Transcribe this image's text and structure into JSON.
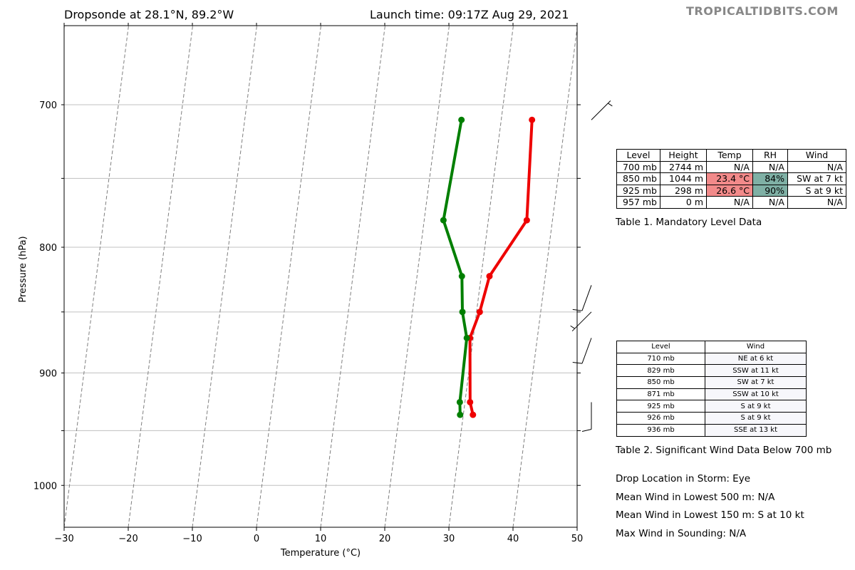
{
  "header": {
    "title_left": "Dropsonde at 28.1°N, 89.2°W",
    "title_right": "Launch time: 09:17Z Aug 29, 2021",
    "brand": "TROPICALTIDBITS.COM"
  },
  "chart_data": {
    "type": "line",
    "title": "Dropsonde at 28.1°N, 89.2°W",
    "xlabel": "Temperature (°C)",
    "ylabel": "Pressure (hPa)",
    "xlim": [
      -30,
      50
    ],
    "ylim": [
      1040,
      650
    ],
    "yscale": "log",
    "x_ticks": [
      -30,
      -20,
      -10,
      0,
      10,
      20,
      30,
      40,
      50
    ],
    "x_tick_labels": [
      "−30",
      "−20",
      "−10",
      "0",
      "10",
      "20",
      "30",
      "40",
      "50"
    ],
    "y_ticks": [
      700,
      800,
      900,
      1000
    ],
    "y_tick_labels": [
      "700",
      "800",
      "900",
      "1000"
    ],
    "y_gridlines": [
      700,
      750,
      800,
      850,
      900,
      950,
      1000
    ],
    "skew": true,
    "colors": {
      "temperature": "#ee0000",
      "dewpoint": "#007f00",
      "grid": "#c0c0c0",
      "isotherm": "#7f7f7f"
    },
    "series": [
      {
        "name": "Temperature",
        "points": [
          [
            710,
            34.8
          ],
          [
            780,
            36.0
          ],
          [
            822,
            31.3
          ],
          [
            850,
            30.5
          ],
          [
            871,
            29.5
          ],
          [
            925,
            30.8
          ],
          [
            936,
            31.5
          ]
        ]
      },
      {
        "name": "Dewpoint",
        "points": [
          [
            710,
            23.8
          ],
          [
            780,
            23.0
          ],
          [
            822,
            27.0
          ],
          [
            850,
            27.8
          ],
          [
            871,
            29.0
          ],
          [
            925,
            29.2
          ],
          [
            936,
            29.5
          ]
        ]
      }
    ],
    "wind_barbs": [
      {
        "pressure": 710,
        "direction_deg": 45,
        "speed_kt": 6
      },
      {
        "pressure": 829,
        "direction_deg": 200,
        "speed_kt": 11
      },
      {
        "pressure": 850,
        "direction_deg": 225,
        "speed_kt": 7
      },
      {
        "pressure": 871,
        "direction_deg": 200,
        "speed_kt": 10
      },
      {
        "pressure": 925,
        "direction_deg": 180,
        "speed_kt": 9
      }
    ]
  },
  "table1": {
    "headers": [
      "Level",
      "Height",
      "Temp",
      "RH",
      "Wind"
    ],
    "rows": [
      [
        "700 mb",
        "2744 m",
        "N/A",
        "N/A",
        "N/A"
      ],
      [
        "850 mb",
        "1044 m",
        "23.4 °C",
        "84%",
        "SW at 7 kt"
      ],
      [
        "925 mb",
        "298 m",
        "26.6 °C",
        "90%",
        "S at 9 kt"
      ],
      [
        "957 mb",
        "0 m",
        "N/A",
        "N/A",
        "N/A"
      ]
    ],
    "caption": "Table 1. Mandatory Level Data"
  },
  "table2": {
    "headers": [
      "Level",
      "Wind"
    ],
    "rows": [
      [
        "710 mb",
        "NE at 6 kt"
      ],
      [
        "829 mb",
        "SSW at 11 kt"
      ],
      [
        "850 mb",
        "SW at 7 kt"
      ],
      [
        "871 mb",
        "SSW at 10 kt"
      ],
      [
        "925 mb",
        "S at 9 kt"
      ],
      [
        "926 mb",
        "S at 9 kt"
      ],
      [
        "936 mb",
        "SSE at 13 kt"
      ]
    ],
    "caption": "Table 2. Significant Wind Data Below 700 mb"
  },
  "info": {
    "location": "Drop Location in Storm: Eye",
    "mean500": "Mean Wind in Lowest 500 m:  N/A",
    "mean150": "Mean Wind in Lowest 150 m:  S at 10 kt",
    "maxwind": "Max Wind in Sounding:  N/A"
  }
}
